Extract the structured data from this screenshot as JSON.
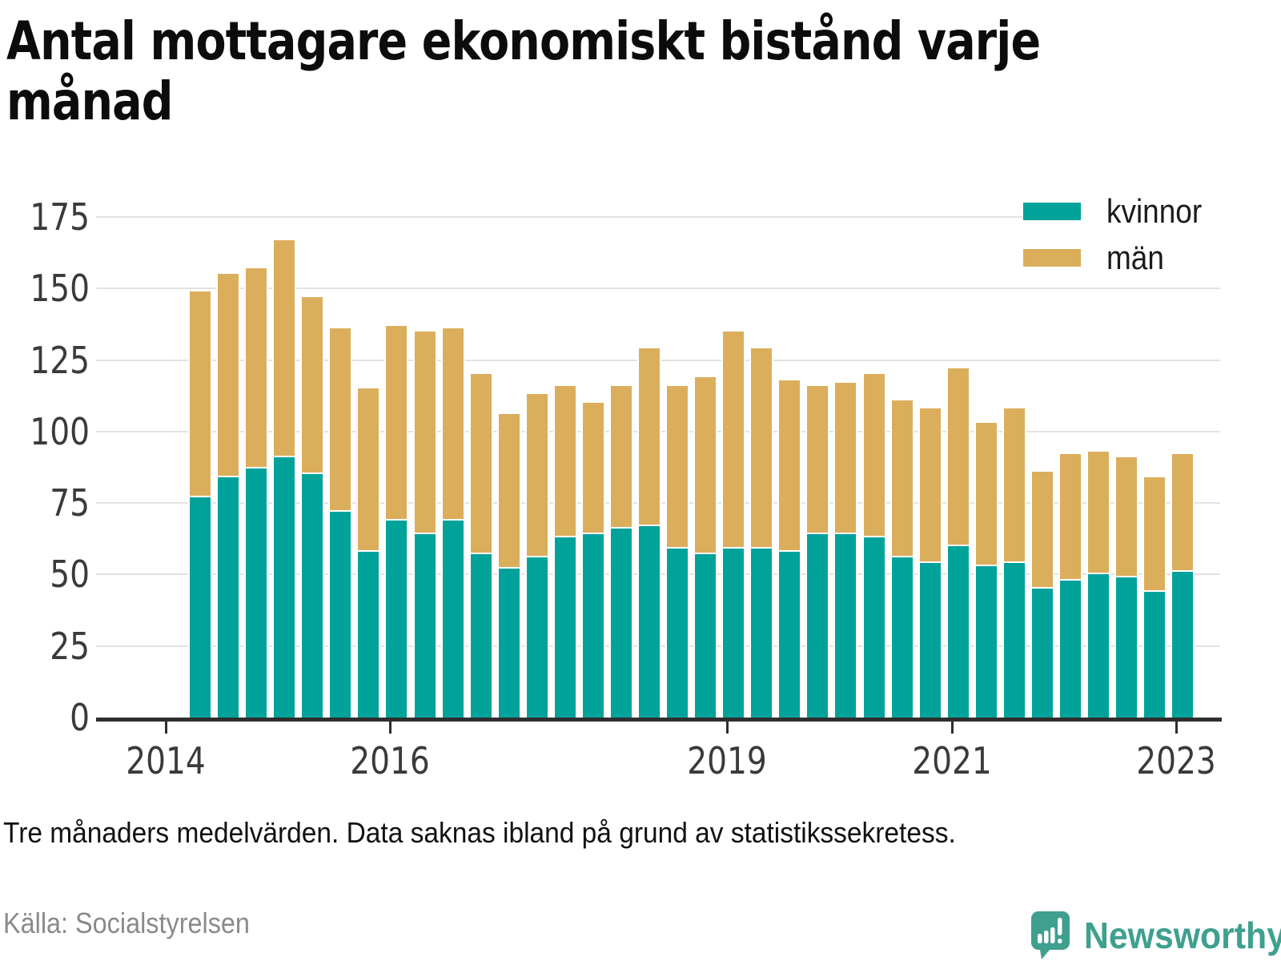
{
  "title": "Antal mottagare ekonomiskt bistånd varje\nmånad",
  "footnote": "Tre månaders medelvärden. Data saknas ibland på grund av statistikssekretess.",
  "source": "Källa: Socialstyrelsen",
  "branding": {
    "name": "Newsworthy",
    "color": "#3fa08f",
    "icon": "newsworthy-speech-bubble-chart-icon"
  },
  "colors": {
    "kvinnor": "#00a29a",
    "man": "#dbae5c",
    "grid": "#e3e3e3",
    "axis": "#2e2e2e"
  },
  "chart_data": {
    "type": "bar",
    "stacked": true,
    "title": "Antal mottagare ekonomiskt bistånd varje månad",
    "xlabel": "",
    "ylabel": "",
    "ylim": [
      0,
      175
    ],
    "yticks": [
      0,
      25,
      50,
      75,
      100,
      125,
      150,
      175
    ],
    "grid": true,
    "legend_position": "top-right",
    "x": [
      "2014 Q2",
      "2014 Q3",
      "2014 Q4",
      "2015 Q1",
      "2015 Q2",
      "2015 Q3",
      "2015 Q4",
      "2016 Q1",
      "2016 Q2",
      "2016 Q3",
      "2016 Q4",
      "2017 Q1",
      "2017 Q2",
      "2017 Q3",
      "2017 Q4",
      "2018 Q1",
      "2018 Q2",
      "2018 Q3",
      "2018 Q4",
      "2019 Q1",
      "2019 Q2",
      "2019 Q3",
      "2019 Q4",
      "2020 Q1",
      "2020 Q2",
      "2020 Q3",
      "2020 Q4",
      "2021 Q1",
      "2021 Q2",
      "2021 Q3",
      "2021 Q4",
      "2022 Q1",
      "2022 Q2",
      "2022 Q3",
      "2022 Q4",
      "2023 Q1"
    ],
    "series": [
      {
        "name": "kvinnor",
        "color": "#00a29a",
        "values": [
          77,
          84,
          87,
          91,
          85,
          72,
          58,
          69,
          64,
          69,
          57,
          52,
          56,
          63,
          64,
          66,
          67,
          59,
          57,
          59,
          59,
          58,
          64,
          64,
          63,
          56,
          54,
          60,
          53,
          54,
          45,
          48,
          50,
          49,
          44,
          51
        ]
      },
      {
        "name": "män",
        "color": "#dbae5c",
        "values": [
          72,
          71,
          70,
          76,
          62,
          64,
          57,
          68,
          71,
          67,
          63,
          54,
          57,
          53,
          46,
          50,
          62,
          57,
          62,
          76,
          70,
          60,
          52,
          53,
          57,
          55,
          54,
          62,
          50,
          54,
          41,
          44,
          43,
          42,
          40,
          41
        ]
      }
    ],
    "xticks": [
      {
        "label": "2014",
        "slot": 0
      },
      {
        "label": "2016",
        "slot": 8
      },
      {
        "label": "2019",
        "slot": 20
      },
      {
        "label": "2021",
        "slot": 28
      },
      {
        "label": "2023",
        "slot": 36
      }
    ]
  }
}
